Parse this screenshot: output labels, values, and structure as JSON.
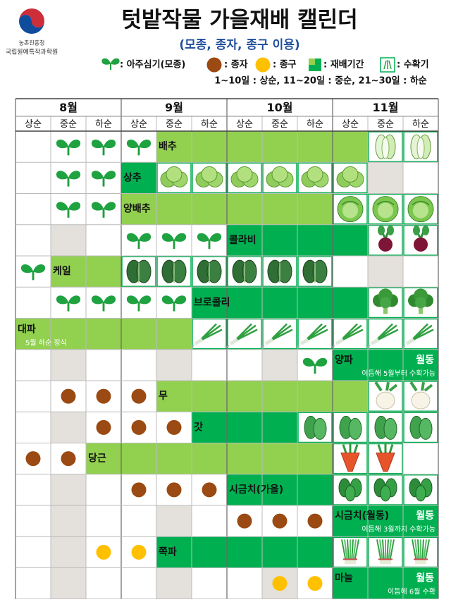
{
  "header": {
    "org_small": "농촌진흥청",
    "org": "국립원예특작과학원",
    "title": "텃밭작물 가을재배 캘린더",
    "subtitle": "(모종, 종자, 종구 이용)"
  },
  "legend": {
    "items": [
      ": 아주심기(모종)",
      ": 종자",
      ": 종구",
      ": 재배기간",
      ": 수확기"
    ],
    "note": "1~10일 : 상순, 11~20일 : 중순, 21~30일 : 하순"
  },
  "table": {
    "months": [
      "8월",
      "9월",
      "10월",
      "11월"
    ],
    "periods": [
      "상순",
      "중순",
      "하순",
      "상순",
      "중순",
      "하순",
      "상순",
      "중순",
      "하순",
      "상순",
      "중순",
      "하순"
    ],
    "crops": [
      {
        "name": "배추"
      },
      {
        "name": "상추"
      },
      {
        "name": "양배추"
      },
      {
        "name": "콜라비"
      },
      {
        "name": "케일"
      },
      {
        "name": "브로콜리"
      },
      {
        "name": "대파",
        "note": "5월 하순 정식"
      },
      {
        "name": "양파",
        "tag": "월동",
        "note": "이듬해 5월부터 수확가능"
      },
      {
        "name": "무"
      },
      {
        "name": "갓"
      },
      {
        "name": "당근"
      },
      {
        "name": "시금치(가을)"
      },
      {
        "name": "시금치(월동)",
        "tag": "월동",
        "note": "이듬해 3월까지 수확가능"
      },
      {
        "name": "쪽파"
      },
      {
        "name": "마늘",
        "tag": "월동",
        "note": "이듬해 6월 수확"
      }
    ]
  }
}
